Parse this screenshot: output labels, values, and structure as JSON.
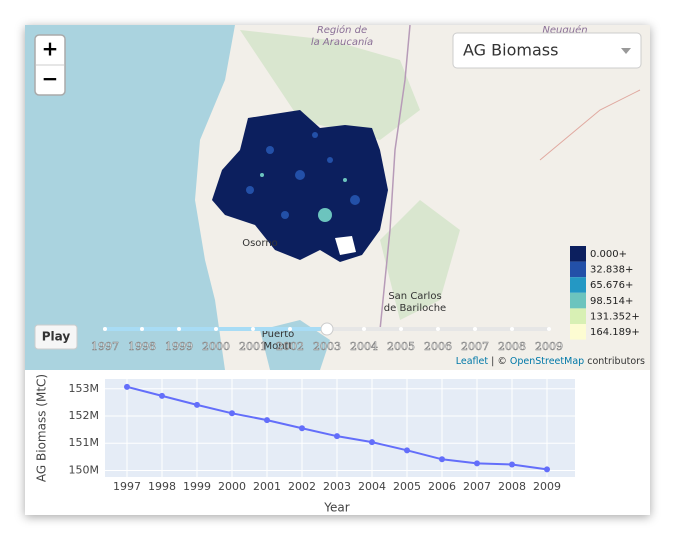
{
  "map": {
    "zoom_in": "+",
    "zoom_out": "−",
    "dropdown": "AG Biomass",
    "legend": [
      {
        "label": "0.000+",
        "color": "#0c1f5e"
      },
      {
        "label": "32.838+",
        "color": "#2350a8"
      },
      {
        "label": "65.676+",
        "color": "#2498c4"
      },
      {
        "label": "98.514+",
        "color": "#6cc4be"
      },
      {
        "label": "131.352+",
        "color": "#d8f0b4"
      },
      {
        "label": "164.189+",
        "color": "#fdfcd2"
      }
    ],
    "play": "Play",
    "years": [
      "1997",
      "1998",
      "1999",
      "2000",
      "2001",
      "2002",
      "2003",
      "2004",
      "2005",
      "2006",
      "2007",
      "2008",
      "2009"
    ],
    "current_index": 6,
    "places": [
      "Región de",
      "la Araucanía",
      "Osorno",
      "San Carlos",
      "de Bariloche",
      "Puerto",
      "Montt",
      "Neuquén"
    ],
    "attribution": [
      "Leaflet",
      "| ©",
      "OpenStreetMap",
      "contributors"
    ]
  },
  "chart_data": {
    "type": "line",
    "ylabel": "AG Biomass (MtC)",
    "xlabel": "Year",
    "categories": [
      "1997",
      "1998",
      "1999",
      "2000",
      "2001",
      "2002",
      "2003",
      "2004",
      "2005",
      "2006",
      "2007",
      "2008",
      "2009"
    ],
    "series": [
      {
        "name": "AG Biomass",
        "color": "#636efa",
        "values": [
          153070000,
          152740000,
          152410000,
          152100000,
          151850000,
          151550000,
          151260000,
          151040000,
          150740000,
          150410000,
          150260000,
          150220000,
          150040000
        ]
      }
    ],
    "ylim": [
      149760000,
      153360000
    ],
    "yticks": [
      {
        "value": 150000000,
        "label": "150M"
      },
      {
        "value": 151000000,
        "label": "151M"
      },
      {
        "value": 152000000,
        "label": "152M"
      },
      {
        "value": 153000000,
        "label": "153M"
      }
    ],
    "grid": true
  }
}
